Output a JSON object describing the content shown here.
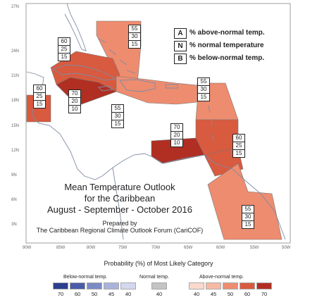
{
  "map": {
    "latitude_labels": [
      "27N",
      "24N",
      "21N",
      "18N",
      "15N",
      "12N",
      "9N",
      "6N",
      "3N"
    ],
    "longitude_labels": [
      "90W",
      "85W",
      "80W",
      "75W",
      "70W",
      "65W",
      "60W",
      "55W",
      "50W"
    ]
  },
  "key": {
    "rows": [
      {
        "letter": "A",
        "text": "% above-normal temp."
      },
      {
        "letter": "N",
        "text": "% normal temperature"
      },
      {
        "letter": "B",
        "text": "% below-normal temp."
      }
    ]
  },
  "forecasts": [
    {
      "above": "55",
      "normal": "30",
      "below": "15"
    },
    {
      "above": "60",
      "normal": "25",
      "below": "15"
    },
    {
      "above": "60",
      "normal": "25",
      "below": "15"
    },
    {
      "above": "70",
      "normal": "20",
      "below": "10"
    },
    {
      "above": "55",
      "normal": "30",
      "below": "15"
    },
    {
      "above": "55",
      "normal": "30",
      "below": "15"
    },
    {
      "above": "70",
      "normal": "20",
      "below": "10"
    },
    {
      "above": "60",
      "normal": "25",
      "below": "15"
    },
    {
      "above": "55",
      "normal": "30",
      "below": "15"
    }
  ],
  "title": {
    "line1": "Mean Temperature Outlook",
    "line2": "for the Caribbean",
    "line3": "August - September - October 2016",
    "prepared_by": "Prepared by",
    "organization": "The Caribbean Regional Climate Outlook Forum (CariCOF)"
  },
  "legend": {
    "title": "Probability (%) of Most Likely Category",
    "below": {
      "label": "Below-normal temp.",
      "ticks": [
        "70",
        "60",
        "50",
        "45",
        "40"
      ],
      "colors": [
        "#2d3f8e",
        "#4a5ca8",
        "#7b8bc4",
        "#a9b3da",
        "#d3d8ee"
      ]
    },
    "normal": {
      "label": "Normal temp.",
      "ticks": [
        "40"
      ],
      "colors": [
        "#c4c4c4"
      ]
    },
    "above": {
      "label": "Above-normal temp.",
      "ticks": [
        "40",
        "45",
        "50",
        "60",
        "70"
      ],
      "colors": [
        "#fbd9cc",
        "#f7b9a3",
        "#ee8c6f",
        "#d85a3f",
        "#b02f22"
      ]
    }
  },
  "colors": {
    "cat55": "#ee8c6f",
    "cat60": "#d85a3f",
    "cat70": "#b02f22",
    "land": "#ffffff",
    "sea": "#ffffff"
  }
}
